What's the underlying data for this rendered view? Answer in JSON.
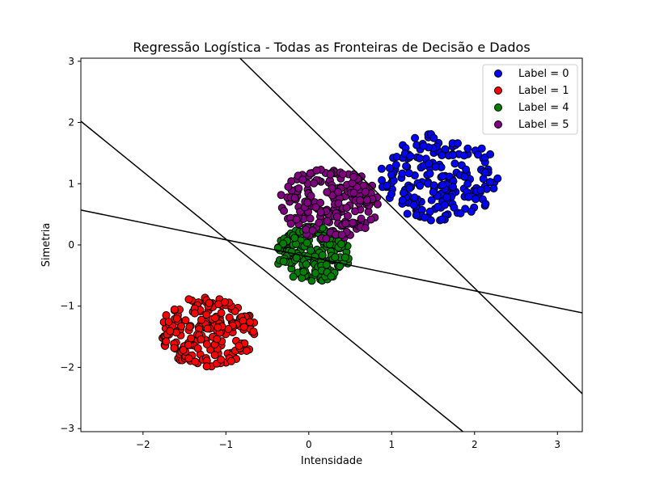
{
  "chart_data": {
    "type": "scatter",
    "title": "Regressão Logística - Todas as Fronteiras de Decisão e Dados",
    "xlabel": "Intensidade",
    "ylabel": "Simetria",
    "xlim": [
      -2.75,
      3.3
    ],
    "ylim": [
      -3.05,
      3.05
    ],
    "xticks": [
      -2,
      -1,
      0,
      1,
      2,
      3
    ],
    "yticks": [
      -3,
      -2,
      -1,
      0,
      1,
      2,
      3
    ],
    "xtick_labels": [
      "−2",
      "−1",
      "0",
      "1",
      "2",
      "3"
    ],
    "ytick_labels": [
      "−3",
      "−2",
      "−1",
      "0",
      "1",
      "2",
      "3"
    ],
    "grid": false,
    "legend_position": "top-right",
    "series": [
      {
        "name": "Label = 0",
        "color": "#0000ff",
        "center": [
          1.58,
          1.1
        ],
        "radius": 0.72,
        "count": 200,
        "seed": 11
      },
      {
        "name": "Label = 1",
        "color": "#ff0000",
        "center": [
          -1.22,
          -1.42
        ],
        "radius": 0.58,
        "count": 200,
        "seed": 23
      },
      {
        "name": "Label = 4",
        "color": "#008000",
        "center": [
          0.05,
          -0.15
        ],
        "radius": 0.45,
        "count": 200,
        "seed": 37
      },
      {
        "name": "Label = 5",
        "color": "#800080",
        "center": [
          0.25,
          0.68
        ],
        "radius": 0.6,
        "count": 200,
        "seed": 53
      }
    ],
    "boundaries": [
      {
        "x": [
          -0.83,
          3.3
        ],
        "y": [
          3.05,
          -2.43
        ]
      },
      {
        "x": [
          -2.75,
          3.3
        ],
        "y": [
          0.57,
          -1.11
        ]
      },
      {
        "x": [
          -2.75,
          1.86
        ],
        "y": [
          2.02,
          -3.05
        ]
      }
    ]
  }
}
